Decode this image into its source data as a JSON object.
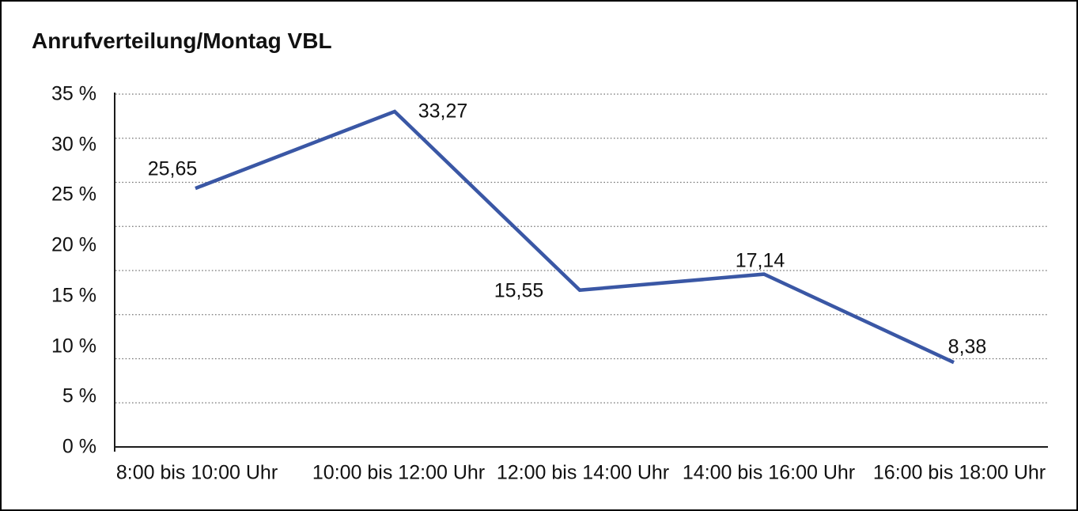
{
  "chart_data": {
    "type": "line",
    "title": "Anrufverteilung/Montag VBL",
    "categories": [
      "8:00 bis 10:00 Uhr",
      "10:00 bis 12:00 Uhr",
      "12:00 bis 14:00 Uhr",
      "14:00 bis 16:00 Uhr",
      "16:00 bis 18:00 Uhr"
    ],
    "values": [
      25.65,
      33.27,
      15.55,
      17.14,
      8.38
    ],
    "value_labels": [
      "25,65",
      "33,27",
      "15,55",
      "17,14",
      "8,38"
    ],
    "xlabel": "",
    "ylabel": "",
    "y_ticks": [
      "35 %",
      "30 %",
      "25 %",
      "20 %",
      "15 %",
      "10 %",
      "5 %",
      "0 %"
    ],
    "y_tick_values": [
      35,
      30,
      25,
      20,
      15,
      10,
      5,
      0
    ],
    "ylim": [
      0,
      35
    ],
    "grid": {
      "horizontal": true,
      "style": "dotted",
      "divisions": 8
    },
    "legend": "none",
    "colors": {
      "line": "#3a57a5",
      "grid": "#757575",
      "axis": "#1c1c1c",
      "text": "#111111",
      "background": "#ffffff",
      "frame_border": "#000000"
    }
  }
}
